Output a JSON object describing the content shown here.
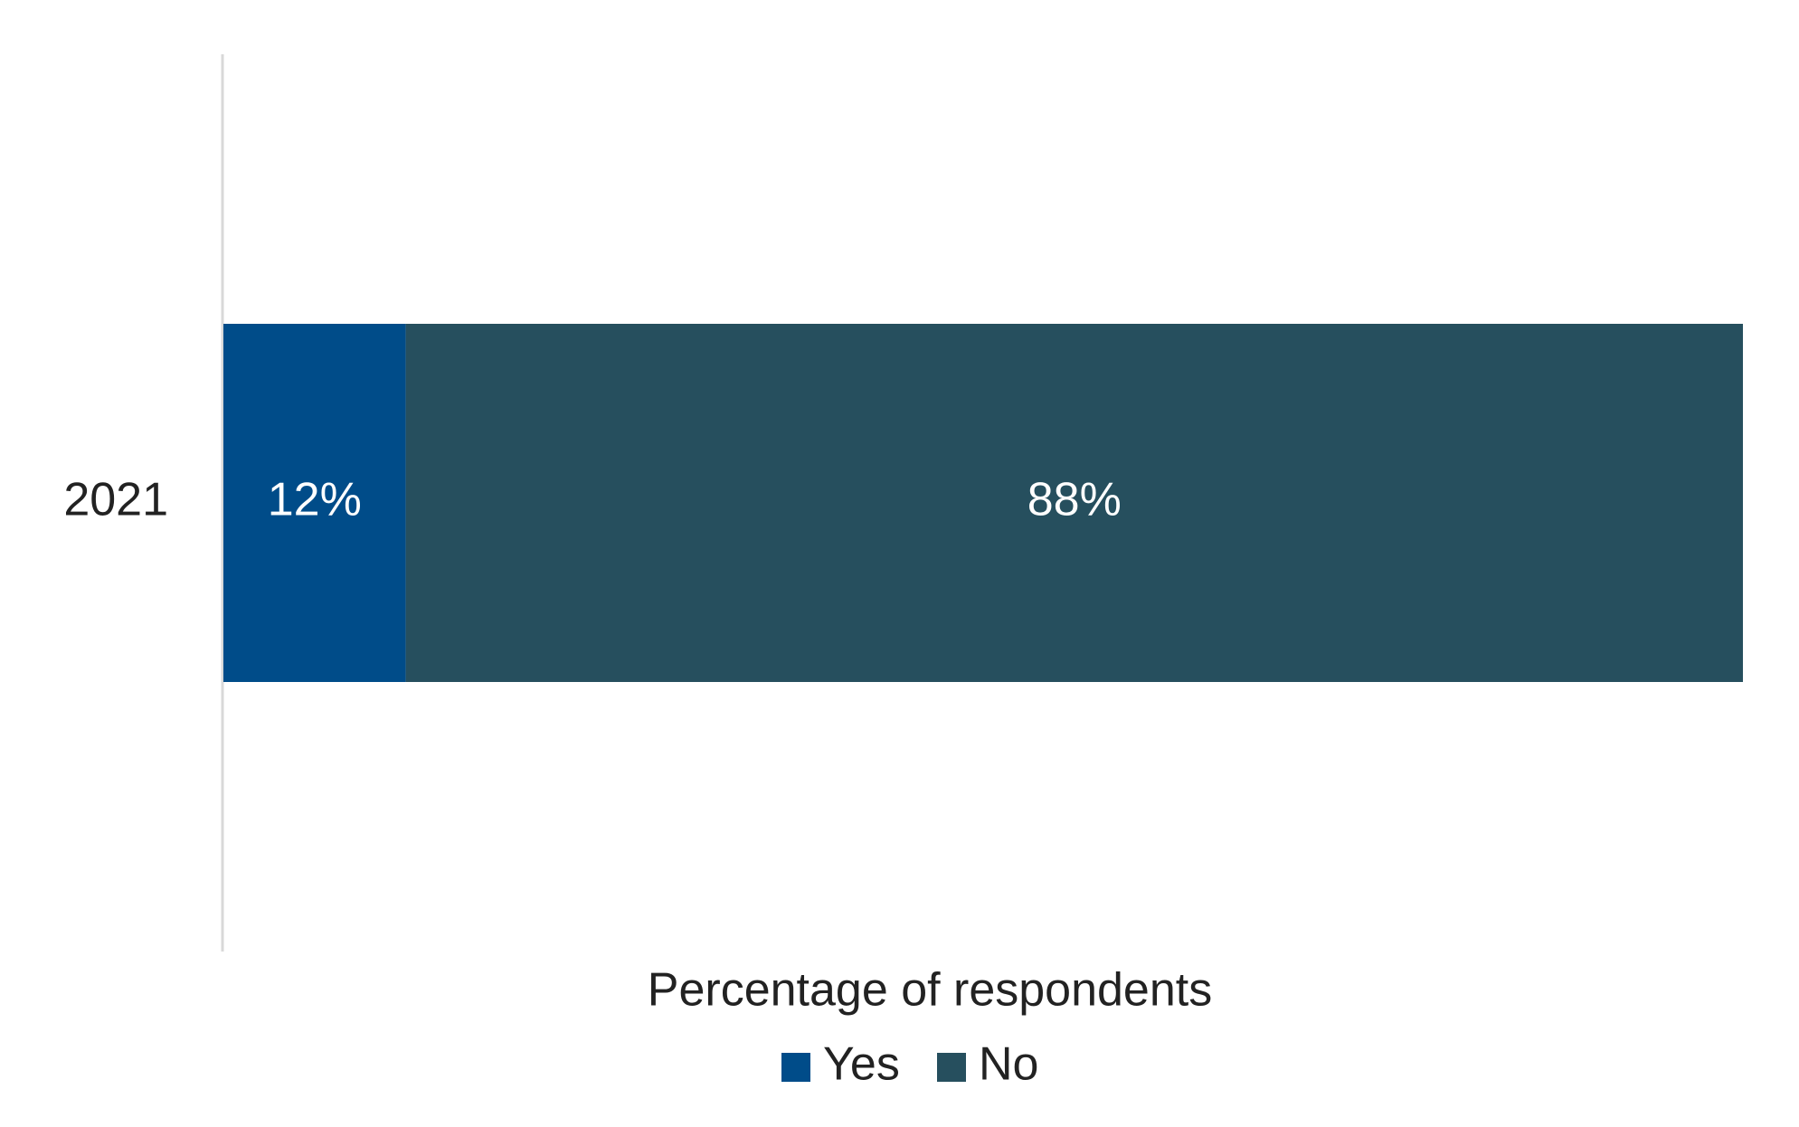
{
  "chart_data": {
    "type": "bar",
    "orientation": "horizontal",
    "stacked": true,
    "categories": [
      "2021"
    ],
    "series": [
      {
        "name": "Yes",
        "values": [
          12
        ],
        "color": "#004C89",
        "labels": [
          "12%"
        ]
      },
      {
        "name": "No",
        "values": [
          88
        ],
        "color": "#264F5E",
        "labels": [
          "88%"
        ]
      }
    ],
    "xlabel": "Percentage of respondents",
    "ylabel": "",
    "xlim": [
      0,
      100
    ],
    "grid": false,
    "legend": {
      "position": "bottom",
      "entries": [
        "Yes",
        "No"
      ]
    }
  }
}
